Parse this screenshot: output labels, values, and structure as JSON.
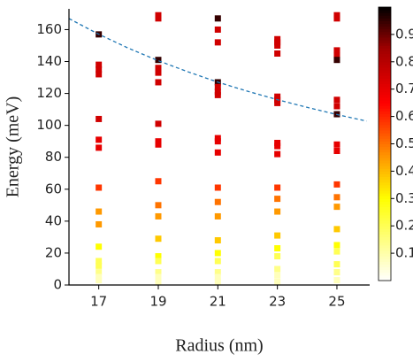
{
  "chart_data": {
    "type": "scatter",
    "xlabel": "Radius (nm)",
    "ylabel": "Energy (meV)",
    "xlim": [
      16,
      26.1
    ],
    "ylim": [
      0,
      173
    ],
    "xticks": [
      17,
      19,
      21,
      23,
      25
    ],
    "yticks": [
      0,
      20,
      40,
      60,
      80,
      100,
      120,
      140,
      160
    ],
    "x": [
      17,
      17,
      17,
      17,
      17,
      17,
      17,
      17,
      17,
      17,
      17,
      17,
      17,
      17,
      17,
      17,
      19,
      19,
      19,
      19,
      19,
      19,
      19,
      19,
      19,
      19,
      19,
      19,
      19,
      19,
      19,
      19,
      19,
      19,
      21,
      21,
      21,
      21,
      21,
      21,
      21,
      21,
      21,
      21,
      21,
      21,
      21,
      21,
      21,
      21,
      21,
      21,
      21,
      23,
      23,
      23,
      23,
      23,
      23,
      23,
      23,
      23,
      23,
      23,
      23,
      23,
      23,
      23,
      23,
      23,
      23,
      23,
      25,
      25,
      25,
      25,
      25,
      25,
      25,
      25,
      25,
      25,
      25,
      25,
      25,
      25,
      25,
      25,
      25,
      25,
      25
    ],
    "y": [
      157,
      138,
      135,
      132,
      104,
      91,
      86,
      61,
      46,
      38,
      24,
      15,
      12,
      8,
      5,
      3,
      169,
      167,
      141,
      136,
      133,
      127,
      101,
      90,
      88,
      65,
      50,
      43,
      29,
      18,
      15,
      8,
      5,
      2,
      167,
      160,
      152,
      127,
      124,
      121,
      119,
      92,
      90,
      83,
      61,
      52,
      43,
      28,
      20,
      15,
      8,
      5,
      2,
      154,
      152,
      150,
      145,
      118,
      116,
      114,
      89,
      87,
      82,
      61,
      54,
      46,
      31,
      23,
      18,
      10,
      6,
      2,
      169,
      167,
      147,
      144,
      141,
      116,
      112,
      107,
      88,
      84,
      63,
      55,
      49,
      35,
      25,
      21,
      13,
      8,
      3
    ],
    "c": [
      0.95,
      0.75,
      0.75,
      0.75,
      0.75,
      0.7,
      0.7,
      0.58,
      0.45,
      0.45,
      0.3,
      0.2,
      0.2,
      0.14,
      0.08,
      0.08,
      0.75,
      0.75,
      0.95,
      0.75,
      0.75,
      0.75,
      0.75,
      0.7,
      0.7,
      0.58,
      0.5,
      0.45,
      0.38,
      0.3,
      0.2,
      0.14,
      0.08,
      0.08,
      0.95,
      0.75,
      0.75,
      0.95,
      0.75,
      0.75,
      0.75,
      0.7,
      0.7,
      0.7,
      0.58,
      0.5,
      0.45,
      0.38,
      0.3,
      0.2,
      0.14,
      0.08,
      0.08,
      0.75,
      0.75,
      0.75,
      0.75,
      0.75,
      0.75,
      0.75,
      0.7,
      0.7,
      0.7,
      0.58,
      0.5,
      0.45,
      0.38,
      0.3,
      0.2,
      0.14,
      0.08,
      0.08,
      0.75,
      0.75,
      0.75,
      0.75,
      0.95,
      0.75,
      0.75,
      0.95,
      0.7,
      0.7,
      0.58,
      0.5,
      0.45,
      0.38,
      0.3,
      0.2,
      0.2,
      0.14,
      0.08
    ],
    "colormap": [
      [
        0,
        "#ffffff"
      ],
      [
        0.3,
        "#ffff00"
      ],
      [
        0.45,
        "#ff9900"
      ],
      [
        0.65,
        "#ff0000"
      ],
      [
        0.85,
        "#a00000"
      ],
      [
        1,
        "#000000"
      ]
    ],
    "clim": [
      0,
      1
    ],
    "cticks": [
      0.1,
      0.2,
      0.3,
      0.4,
      0.5,
      0.6,
      0.7,
      0.8,
      0.9
    ],
    "curve": {
      "color": "#1f77b4",
      "x": [
        16,
        17,
        18,
        19,
        20,
        21,
        22,
        23,
        24,
        25,
        26
      ],
      "y": [
        166.9,
        157.1,
        148.3,
        140.5,
        133.5,
        127.1,
        121.4,
        116.1,
        111.3,
        106.8,
        102.7
      ]
    }
  }
}
